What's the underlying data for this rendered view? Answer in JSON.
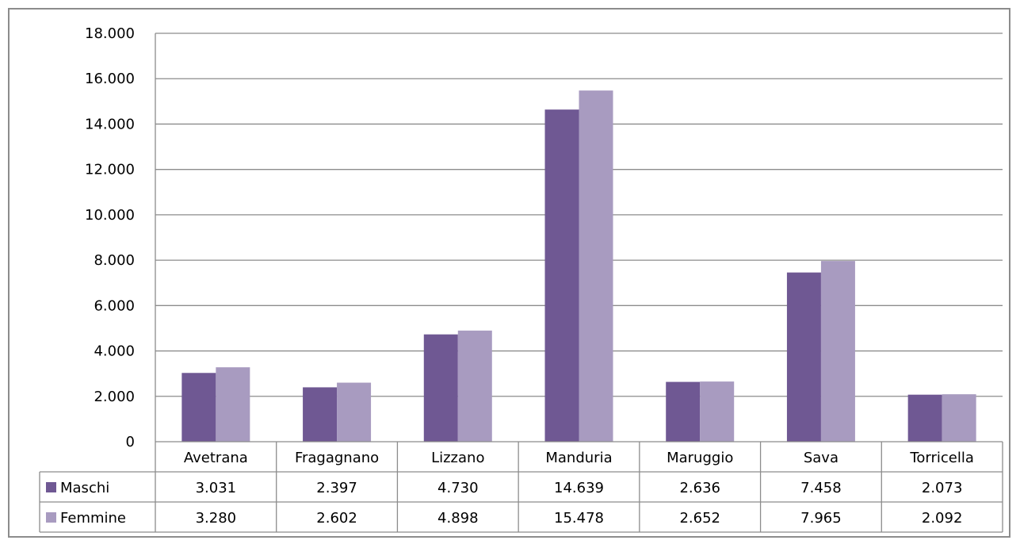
{
  "chart_data": {
    "type": "bar",
    "categories": [
      "Avetrana",
      "Fragagnano",
      "Lizzano",
      "Manduria",
      "Maruggio",
      "Sava",
      "Torricella"
    ],
    "series": [
      {
        "name": "Maschi",
        "values": [
          3031,
          2397,
          4730,
          14639,
          2636,
          7458,
          2073
        ],
        "labels": [
          "3.031",
          "2.397",
          "4.730",
          "14.639",
          "2.636",
          "7.458",
          "2.073"
        ],
        "color": "#6f5893"
      },
      {
        "name": "Femmine",
        "values": [
          3280,
          2602,
          4898,
          15478,
          2652,
          7965,
          2092
        ],
        "labels": [
          "3.280",
          "2.602",
          "4.898",
          "15.478",
          "2.652",
          "7.965",
          "2.092"
        ],
        "color": "#a89bc0"
      }
    ],
    "ylim": [
      0,
      18000
    ],
    "yticks": [
      0,
      2000,
      4000,
      6000,
      8000,
      10000,
      12000,
      14000,
      16000,
      18000
    ],
    "ytick_labels": [
      "0",
      "2.000",
      "4.000",
      "6.000",
      "8.000",
      "10.000",
      "12.000",
      "14.000",
      "16.000",
      "18.000"
    ],
    "grid": true,
    "legend": "data-table",
    "colors": {
      "gridline": "#8c8c8c",
      "axis": "#8c8c8c"
    }
  }
}
